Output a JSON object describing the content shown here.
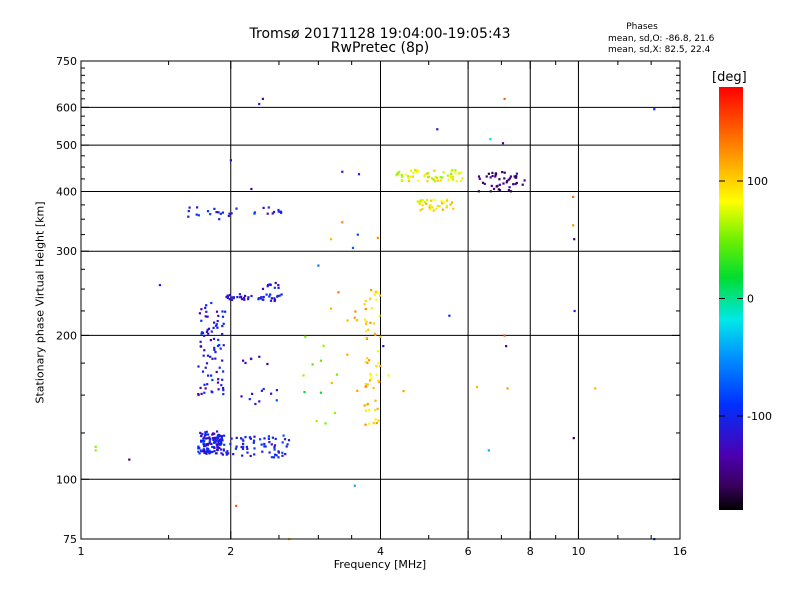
{
  "title_line1": "Tromsø 20171128 19:04:00-19:05:43",
  "title_line2": "RwPretec (8p)",
  "stats": {
    "heading": "Phases",
    "line_o": "mean, sd,O: -86.8, 21.6",
    "line_x": "mean, sd,X:  82.5, 22.4"
  },
  "colorbar": {
    "unit": "[deg]",
    "range": [
      -180,
      180
    ],
    "ticks": [
      {
        "v": 100,
        "label": "100"
      },
      {
        "v": 0,
        "label": "0"
      },
      {
        "v": -100,
        "label": "-100"
      }
    ]
  },
  "chart_data": {
    "type": "scatter",
    "xlabel": "Frequency [MHz]",
    "ylabel": "Stationary phase Virtual Height [km]",
    "xscale": "log",
    "yscale": "log",
    "xlim": [
      1,
      16
    ],
    "ylim": [
      75,
      750
    ],
    "grid": true,
    "xticks": [
      {
        "v": 1,
        "label": "1"
      },
      {
        "v": 2,
        "label": "2"
      },
      {
        "v": 4,
        "label": "4"
      },
      {
        "v": 6,
        "label": "6"
      },
      {
        "v": 8,
        "label": "8"
      },
      {
        "v": 10,
        "label": "10"
      },
      {
        "v": 16,
        "label": "16"
      }
    ],
    "xgrid": [
      2,
      4,
      6,
      8,
      10
    ],
    "xminor": [
      1.5,
      2.5,
      3,
      3.5,
      5,
      7,
      9,
      12,
      14
    ],
    "yticks": [
      {
        "v": 75,
        "label": "75"
      },
      {
        "v": 100,
        "label": "100"
      },
      {
        "v": 200,
        "label": "200"
      },
      {
        "v": 300,
        "label": "300"
      },
      {
        "v": 400,
        "label": "400"
      },
      {
        "v": 500,
        "label": "500"
      },
      {
        "v": 600,
        "label": "600"
      },
      {
        "v": 750,
        "label": "750"
      }
    ],
    "ygrid": [
      100,
      200,
      300,
      400,
      500,
      600
    ],
    "yminor": [
      125,
      150,
      175,
      225,
      250,
      275,
      325,
      350,
      375,
      425,
      450,
      475,
      525,
      550,
      575,
      625,
      650,
      675,
      700,
      725
    ],
    "clusters": [
      {
        "x": [
          1.72,
          1.92
        ],
        "y": [
          113,
          126
        ],
        "phase": -110,
        "n": 120
      },
      {
        "x": [
          1.92,
          2.62
        ],
        "y": [
          111,
          124
        ],
        "phase": -100,
        "n": 70
      },
      {
        "x": [
          1.72,
          1.95
        ],
        "y": [
          150,
          235
        ],
        "phase": -110,
        "n": 80
      },
      {
        "x": [
          1.95,
          2.55
        ],
        "y": [
          236,
          244
        ],
        "phase": -110,
        "n": 40
      },
      {
        "x": [
          2.3,
          2.5
        ],
        "y": [
          250,
          258
        ],
        "phase": -110,
        "n": 10
      },
      {
        "x": [
          1.62,
          2.1
        ],
        "y": [
          350,
          372
        ],
        "phase": -105,
        "n": 18
      },
      {
        "x": [
          2.2,
          2.55
        ],
        "y": [
          356,
          372
        ],
        "phase": -100,
        "n": 12
      },
      {
        "x": [
          2.1,
          2.5
        ],
        "y": [
          143,
          155
        ],
        "phase": -100,
        "n": 10
      },
      {
        "x": [
          2.1,
          2.45
        ],
        "y": [
          170,
          182
        ],
        "phase": -135,
        "n": 6
      },
      {
        "x": [
          4.3,
          5.9
        ],
        "y": [
          420,
          445
        ],
        "phase": 80,
        "n": 60
      },
      {
        "x": [
          4.7,
          5.6
        ],
        "y": [
          365,
          385
        ],
        "phase": 90,
        "n": 35
      },
      {
        "x": [
          6.3,
          7.8
        ],
        "y": [
          400,
          440
        ],
        "phase": -150,
        "n": 45
      },
      {
        "x": [
          3.7,
          4.0
        ],
        "y": [
          130,
          255
        ],
        "phase": 105,
        "n": 55
      },
      {
        "x": [
          3.1,
          3.8
        ],
        "y": [
          150,
          250
        ],
        "phase": 120,
        "n": 14
      },
      {
        "x": [
          2.8,
          3.3
        ],
        "y": [
          130,
          200
        ],
        "phase": 40,
        "n": 10
      }
    ],
    "points": [
      {
        "x": 1.07,
        "y": 115,
        "phase": 60
      },
      {
        "x": 1.07,
        "y": 117,
        "phase": 55
      },
      {
        "x": 1.25,
        "y": 110,
        "phase": -150
      },
      {
        "x": 1.44,
        "y": 255,
        "phase": -110
      },
      {
        "x": 2.0,
        "y": 465,
        "phase": -120
      },
      {
        "x": 2.2,
        "y": 405,
        "phase": -140
      },
      {
        "x": 2.28,
        "y": 610,
        "phase": -110
      },
      {
        "x": 2.32,
        "y": 625,
        "phase": -130
      },
      {
        "x": 3.35,
        "y": 440,
        "phase": -120
      },
      {
        "x": 3.62,
        "y": 435,
        "phase": -110
      },
      {
        "x": 3.35,
        "y": 345,
        "phase": 130
      },
      {
        "x": 3.52,
        "y": 305,
        "phase": -70
      },
      {
        "x": 3.95,
        "y": 320,
        "phase": 125
      },
      {
        "x": 3.18,
        "y": 318,
        "phase": 110
      },
      {
        "x": 3.6,
        "y": 325,
        "phase": -80
      },
      {
        "x": 4.05,
        "y": 190,
        "phase": -120
      },
      {
        "x": 4.15,
        "y": 165,
        "phase": 80
      },
      {
        "x": 4.45,
        "y": 153,
        "phase": 120
      },
      {
        "x": 2.62,
        "y": 75,
        "phase": 110
      },
      {
        "x": 3.55,
        "y": 97,
        "phase": -40
      },
      {
        "x": 5.5,
        "y": 220,
        "phase": -100
      },
      {
        "x": 5.2,
        "y": 540,
        "phase": -120
      },
      {
        "x": 6.65,
        "y": 515,
        "phase": -20
      },
      {
        "x": 7.05,
        "y": 505,
        "phase": -140
      },
      {
        "x": 7.1,
        "y": 625,
        "phase": 140
      },
      {
        "x": 7.15,
        "y": 190,
        "phase": -140
      },
      {
        "x": 7.1,
        "y": 200,
        "phase": 150
      },
      {
        "x": 6.6,
        "y": 115,
        "phase": -40
      },
      {
        "x": 6.25,
        "y": 156,
        "phase": 110
      },
      {
        "x": 7.2,
        "y": 155,
        "phase": 120
      },
      {
        "x": 9.75,
        "y": 340,
        "phase": 120
      },
      {
        "x": 9.8,
        "y": 318,
        "phase": -150
      },
      {
        "x": 9.75,
        "y": 390,
        "phase": 140
      },
      {
        "x": 9.82,
        "y": 225,
        "phase": -110
      },
      {
        "x": 9.78,
        "y": 122,
        "phase": -160
      },
      {
        "x": 10.8,
        "y": 155,
        "phase": 110
      },
      {
        "x": 14.2,
        "y": 595,
        "phase": -100
      },
      {
        "x": 14.2,
        "y": 75,
        "phase": -90
      },
      {
        "x": 2.8,
        "y": 165,
        "phase": 60
      },
      {
        "x": 3.0,
        "y": 280,
        "phase": -60
      },
      {
        "x": 2.05,
        "y": 88,
        "phase": 150
      }
    ]
  }
}
